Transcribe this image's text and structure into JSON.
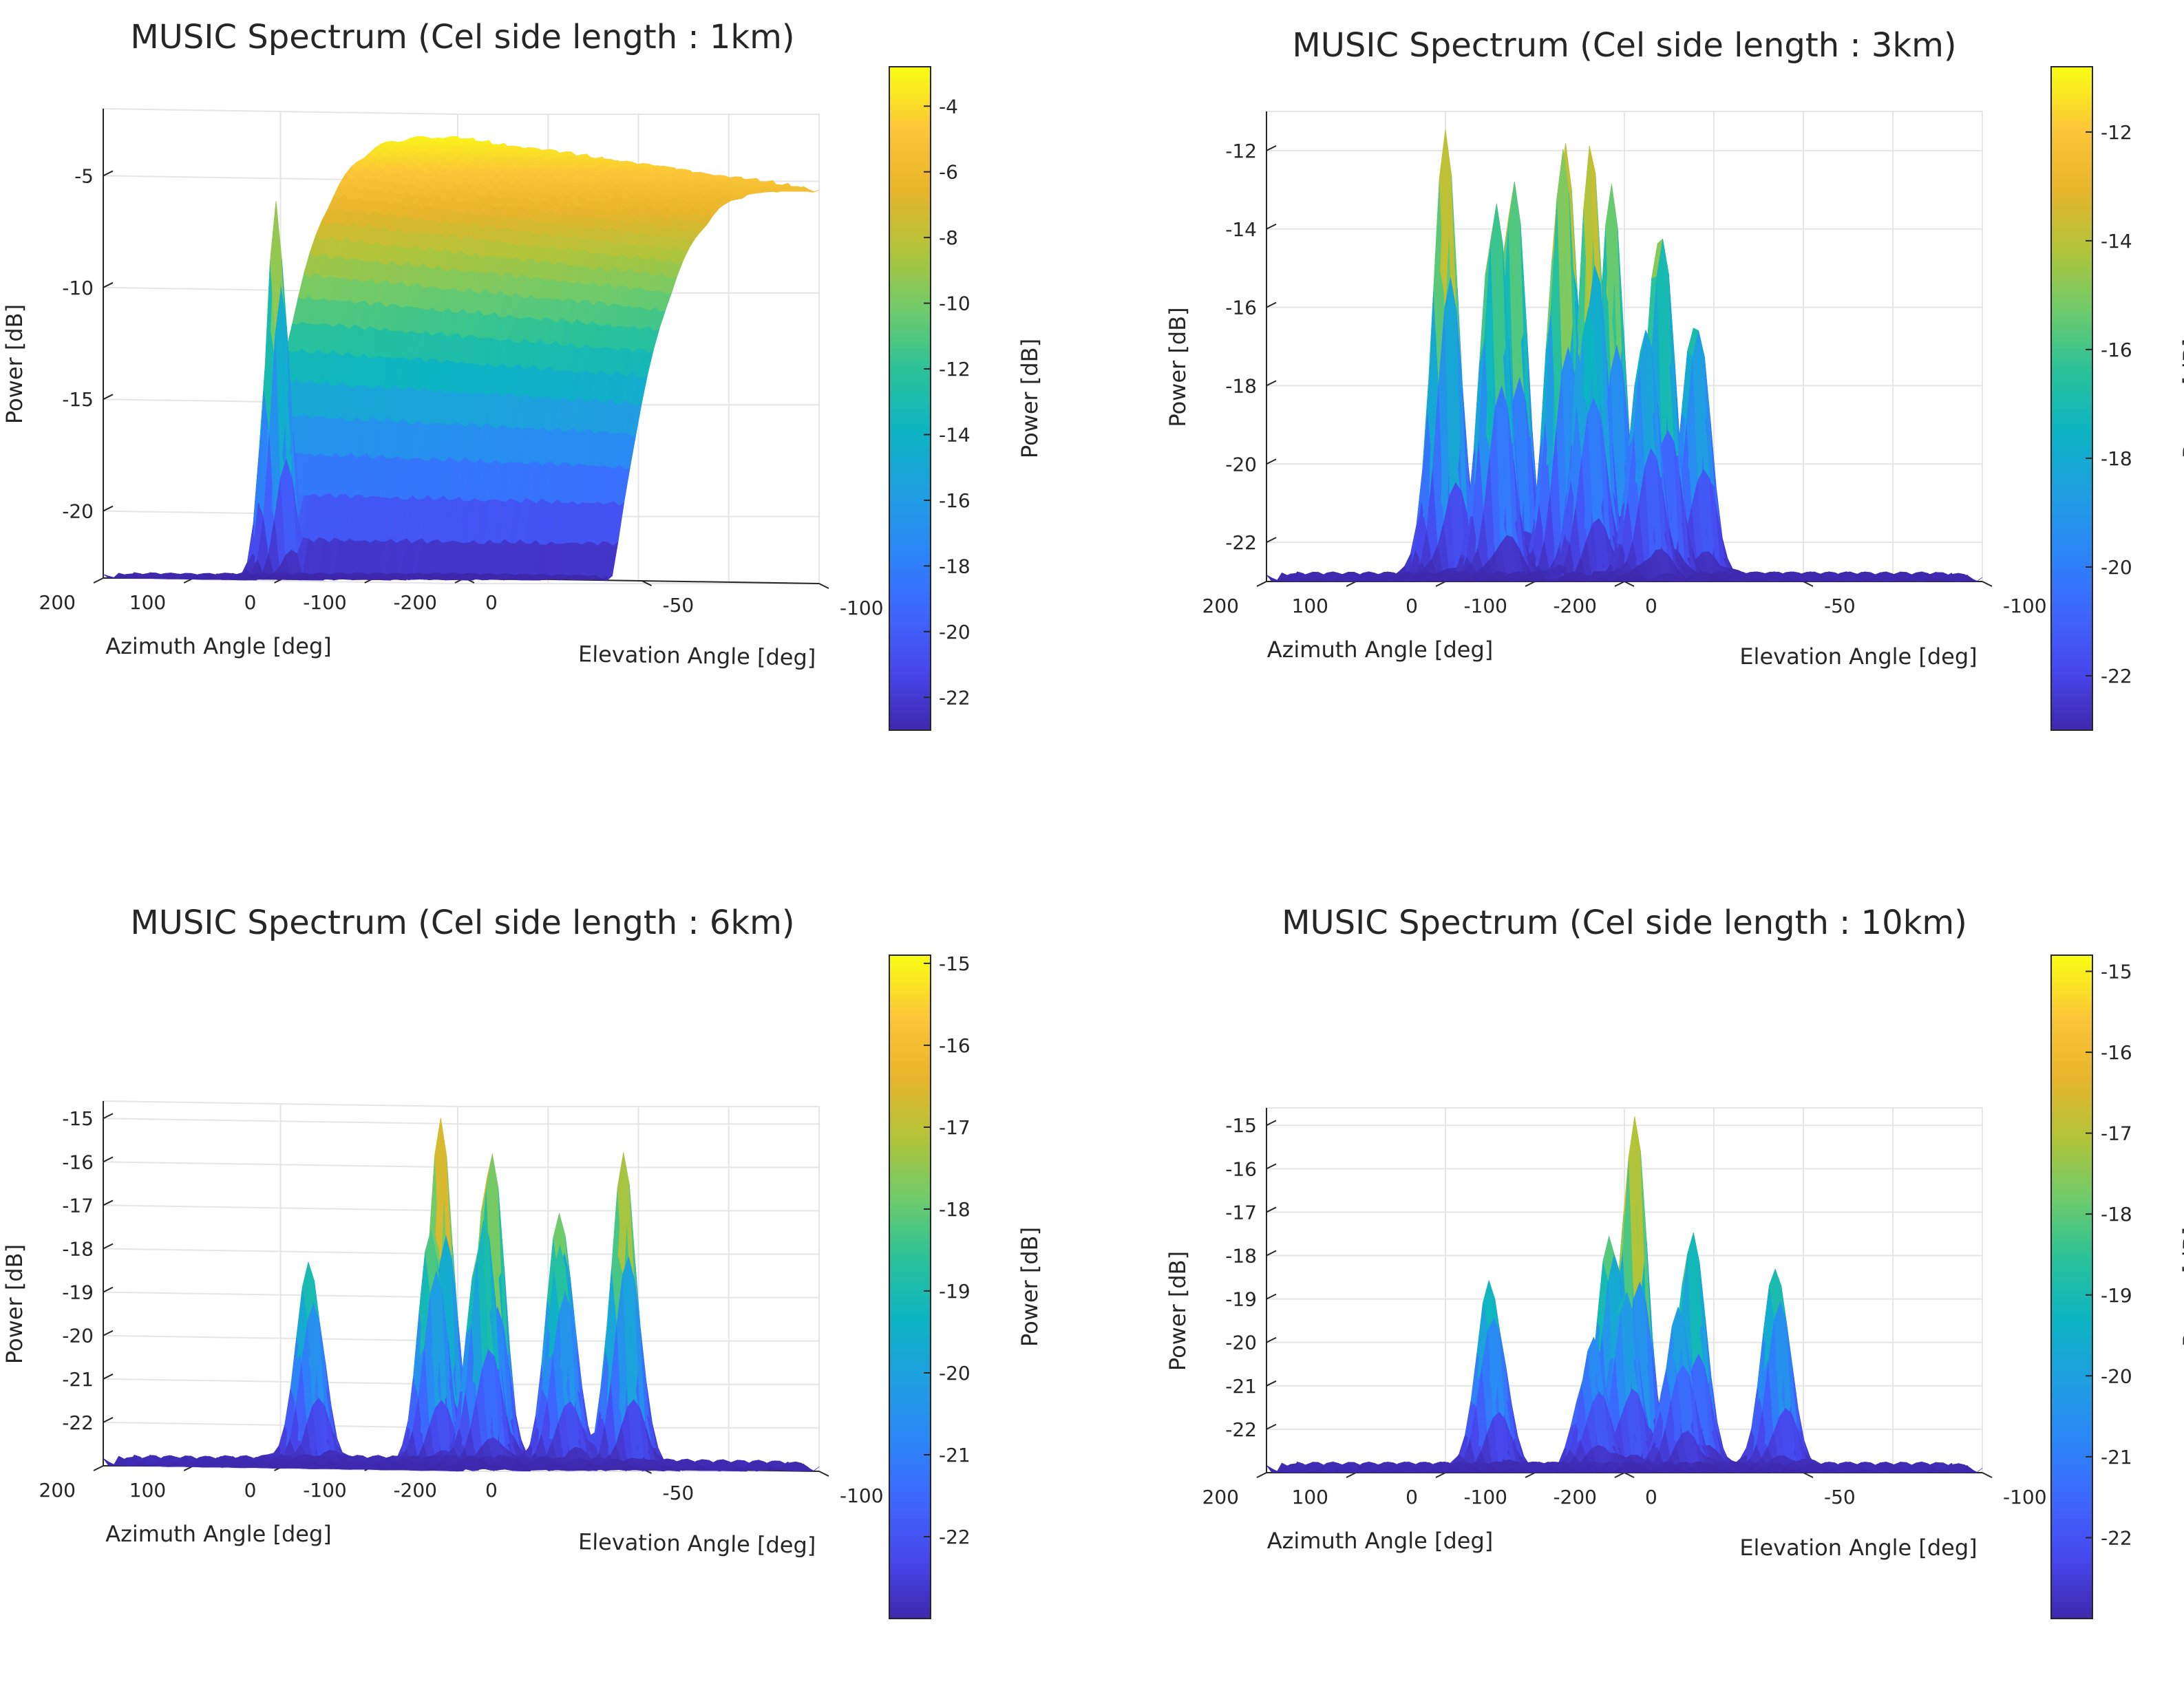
{
  "figure": {
    "layout": "2x2 grid of 3-D surface plots, each with a vertical colorbar on its right"
  },
  "colors": {
    "colormap": [
      "#3e26a8",
      "#4746eb",
      "#3e66fe",
      "#2b86f7",
      "#1f9fe1",
      "#0cb4c3",
      "#29c29a",
      "#6ecb6b",
      "#b1c43a",
      "#e7b52b",
      "#fbc637",
      "#f9fb15"
    ],
    "grid": "#e5e5e5",
    "axis": "#262626"
  },
  "chart_data": [
    {
      "type": "surface3d",
      "title": "MUSIC Spectrum (Cel side length : 1km)",
      "xlabel": "Azimuth Angle [deg]",
      "ylabel": "Elevation Angle [deg]",
      "zlabel": "Power [dB]",
      "colorbar_label": "Power [dB]",
      "x_ticks": [
        "200",
        "100",
        "0",
        "-100",
        "-200"
      ],
      "y_ticks": [
        "0",
        "-50",
        "-100"
      ],
      "z_ticks": [
        "-5",
        "-10",
        "-15",
        "-20"
      ],
      "z_tick_values": [
        -5,
        -10,
        -15,
        -20
      ],
      "colorbar_ticks": [
        "-4",
        "-6",
        "-8",
        "-10",
        "-12",
        "-14",
        "-16",
        "-18",
        "-20",
        "-22"
      ],
      "colorbar_tick_values": [
        -4,
        -6,
        -8,
        -10,
        -12,
        -14,
        -16,
        -18,
        -20,
        -22
      ],
      "xlim": [
        -200,
        200
      ],
      "ylim": [
        -100,
        0
      ],
      "zlim": [
        -23,
        -2
      ],
      "clim": [
        -23,
        -2.8
      ],
      "floor": -23,
      "ridge": {
        "elevation_from": -100,
        "elevation_to": -42,
        "peak_db": -3.2,
        "near_edge_db": -5.5,
        "spike": {
          "azimuth": 165,
          "elevation": -40,
          "power": -6.2
        }
      },
      "peaks": []
    },
    {
      "type": "surface3d",
      "title": "MUSIC Spectrum (Cel side length : 3km)",
      "xlabel": "Azimuth Angle [deg]",
      "ylabel": "Elevation Angle [deg]",
      "zlabel": "Power [dB]",
      "colorbar_label": "Power [dB]",
      "x_ticks": [
        "200",
        "100",
        "0",
        "-100",
        "-200"
      ],
      "y_ticks": [
        "0",
        "-50",
        "-100"
      ],
      "z_ticks": [
        "-12",
        "-14",
        "-16",
        "-18",
        "-20",
        "-22"
      ],
      "z_tick_values": [
        -12,
        -14,
        -16,
        -18,
        -20,
        -22
      ],
      "colorbar_ticks": [
        "-12",
        "-14",
        "-16",
        "-18",
        "-20",
        "-22"
      ],
      "colorbar_tick_values": [
        -12,
        -14,
        -16,
        -18,
        -20,
        -22
      ],
      "xlim": [
        -200,
        200
      ],
      "ylim": [
        -100,
        0
      ],
      "zlim": [
        -23,
        -11
      ],
      "clim": [
        -23,
        -10.8
      ],
      "floor": -23,
      "peaks": [
        {
          "azimuth": 165,
          "elevation": -75,
          "power": -11.8
        },
        {
          "azimuth": 160,
          "elevation": -40,
          "power": -11.5
        },
        {
          "azimuth": 105,
          "elevation": -45,
          "power": -12.2
        },
        {
          "azimuth": 70,
          "elevation": -50,
          "power": -11.8
        },
        {
          "azimuth": 35,
          "elevation": -55,
          "power": -13.0
        },
        {
          "azimuth": 65,
          "elevation": -30,
          "power": -12.8
        },
        {
          "azimuth": -15,
          "elevation": -55,
          "power": -15.5
        },
        {
          "azimuth": -60,
          "elevation": -55,
          "power": -16.0
        },
        {
          "azimuth": -75,
          "elevation": -22,
          "power": -12.0
        },
        {
          "azimuth": -140,
          "elevation": -25,
          "power": -13.5
        },
        {
          "azimuth": -120,
          "elevation": -10,
          "power": -16.0
        },
        {
          "azimuth": -175,
          "elevation": -12,
          "power": -16.2
        }
      ]
    },
    {
      "type": "surface3d",
      "title": "MUSIC Spectrum (Cel side length : 6km)",
      "xlabel": "Azimuth Angle [deg]",
      "ylabel": "Elevation Angle [deg]",
      "zlabel": "Power [dB]",
      "colorbar_label": "Power [dB]",
      "x_ticks": [
        "200",
        "100",
        "0",
        "-100",
        "-200"
      ],
      "y_ticks": [
        "0",
        "-50",
        "-100"
      ],
      "z_ticks": [
        "-15",
        "-16",
        "-17",
        "-18",
        "-19",
        "-20",
        "-21",
        "-22"
      ],
      "z_tick_values": [
        -15,
        -16,
        -17,
        -18,
        -19,
        -20,
        -21,
        -22
      ],
      "colorbar_ticks": [
        "-15",
        "-16",
        "-17",
        "-18",
        "-19",
        "-20",
        "-21",
        "-22"
      ],
      "colorbar_tick_values": [
        -15,
        -16,
        -17,
        -18,
        -19,
        -20,
        -21,
        -22
      ],
      "xlim": [
        -200,
        200
      ],
      "ylim": [
        -100,
        0
      ],
      "zlim": [
        -23,
        -14.6
      ],
      "clim": [
        -23,
        -14.9
      ],
      "floor": -23,
      "peaks": [
        {
          "azimuth": 160,
          "elevation": -85,
          "power": -15.0
        },
        {
          "azimuth": 105,
          "elevation": -85,
          "power": -15.3
        },
        {
          "azimuth": 130,
          "elevation": -75,
          "power": -17.5
        },
        {
          "azimuth": 50,
          "elevation": -20,
          "power": -18.3
        },
        {
          "azimuth": -55,
          "elevation": -42,
          "power": -17.2
        },
        {
          "azimuth": -110,
          "elevation": -50,
          "power": -17.0
        },
        {
          "azimuth": -160,
          "elevation": -55,
          "power": -15.8
        },
        {
          "azimuth": -150,
          "elevation": -40,
          "power": -18.0
        }
      ]
    },
    {
      "type": "surface3d",
      "title": "MUSIC Spectrum (Cel side length : 10km)",
      "xlabel": "Azimuth Angle [deg]",
      "ylabel": "Elevation Angle [deg]",
      "zlabel": "Power [dB]",
      "colorbar_label": "Power [dB]",
      "x_ticks": [
        "200",
        "100",
        "0",
        "-100",
        "-200"
      ],
      "y_ticks": [
        "0",
        "-50",
        "-100"
      ],
      "z_ticks": [
        "-15",
        "-16",
        "-17",
        "-18",
        "-19",
        "-20",
        "-21",
        "-22"
      ],
      "z_tick_values": [
        -15,
        -16,
        -17,
        -18,
        -19,
        -20,
        -21,
        -22
      ],
      "colorbar_ticks": [
        "-15",
        "-16",
        "-17",
        "-18",
        "-19",
        "-20",
        "-21",
        "-22"
      ],
      "colorbar_tick_values": [
        -15,
        -16,
        -17,
        -18,
        -19,
        -20,
        -21,
        -22
      ],
      "xlim": [
        -200,
        200
      ],
      "ylim": [
        -100,
        0
      ],
      "zlim": [
        -23,
        -14.6
      ],
      "clim": [
        -23,
        -14.8
      ],
      "floor": -23,
      "peaks": [
        {
          "azimuth": 170,
          "elevation": -55,
          "power": -18.6
        },
        {
          "azimuth": 150,
          "elevation": -90,
          "power": -14.8
        },
        {
          "azimuth": 135,
          "elevation": -80,
          "power": -17.3
        },
        {
          "azimuth": 100,
          "elevation": -75,
          "power": -18.6
        },
        {
          "azimuth": 45,
          "elevation": -80,
          "power": -18.0
        },
        {
          "azimuth": -5,
          "elevation": -40,
          "power": -20.0
        },
        {
          "azimuth": -55,
          "elevation": -55,
          "power": -17.3
        },
        {
          "azimuth": -80,
          "elevation": -45,
          "power": -19.3
        },
        {
          "azimuth": -150,
          "elevation": -55,
          "power": -18.2
        }
      ]
    }
  ]
}
